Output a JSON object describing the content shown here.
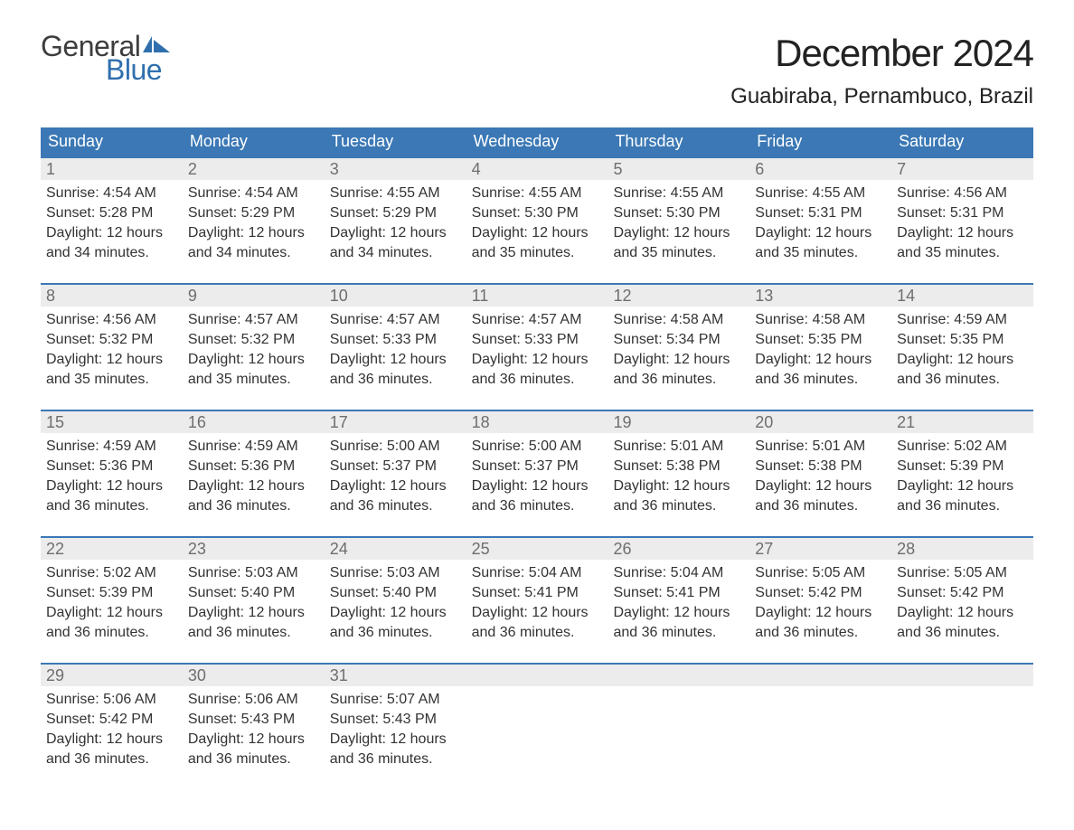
{
  "brand": {
    "general": "General",
    "blue": "Blue"
  },
  "title": "December 2024",
  "location": "Guabiraba, Pernambuco, Brazil",
  "columns": [
    "Sunday",
    "Monday",
    "Tuesday",
    "Wednesday",
    "Thursday",
    "Friday",
    "Saturday"
  ],
  "colors": {
    "header_bg": "#3b78b5",
    "week_border": "#3b78b5",
    "date_bg": "#ececec",
    "date_fg": "#6e6e6e",
    "text": "#333333",
    "background": "#ffffff",
    "logo_blue": "#2f6fae",
    "logo_dark": "#3d3d3d"
  },
  "label_prefixes": {
    "sunrise": "Sunrise: ",
    "sunset": "Sunset: ",
    "daylight": "Daylight: "
  },
  "weeks": [
    [
      {
        "d": "1",
        "sr": "4:54 AM",
        "ss": "5:28 PM",
        "dl": "12 hours and 34 minutes."
      },
      {
        "d": "2",
        "sr": "4:54 AM",
        "ss": "5:29 PM",
        "dl": "12 hours and 34 minutes."
      },
      {
        "d": "3",
        "sr": "4:55 AM",
        "ss": "5:29 PM",
        "dl": "12 hours and 34 minutes."
      },
      {
        "d": "4",
        "sr": "4:55 AM",
        "ss": "5:30 PM",
        "dl": "12 hours and 35 minutes."
      },
      {
        "d": "5",
        "sr": "4:55 AM",
        "ss": "5:30 PM",
        "dl": "12 hours and 35 minutes."
      },
      {
        "d": "6",
        "sr": "4:55 AM",
        "ss": "5:31 PM",
        "dl": "12 hours and 35 minutes."
      },
      {
        "d": "7",
        "sr": "4:56 AM",
        "ss": "5:31 PM",
        "dl": "12 hours and 35 minutes."
      }
    ],
    [
      {
        "d": "8",
        "sr": "4:56 AM",
        "ss": "5:32 PM",
        "dl": "12 hours and 35 minutes."
      },
      {
        "d": "9",
        "sr": "4:57 AM",
        "ss": "5:32 PM",
        "dl": "12 hours and 35 minutes."
      },
      {
        "d": "10",
        "sr": "4:57 AM",
        "ss": "5:33 PM",
        "dl": "12 hours and 36 minutes."
      },
      {
        "d": "11",
        "sr": "4:57 AM",
        "ss": "5:33 PM",
        "dl": "12 hours and 36 minutes."
      },
      {
        "d": "12",
        "sr": "4:58 AM",
        "ss": "5:34 PM",
        "dl": "12 hours and 36 minutes."
      },
      {
        "d": "13",
        "sr": "4:58 AM",
        "ss": "5:35 PM",
        "dl": "12 hours and 36 minutes."
      },
      {
        "d": "14",
        "sr": "4:59 AM",
        "ss": "5:35 PM",
        "dl": "12 hours and 36 minutes."
      }
    ],
    [
      {
        "d": "15",
        "sr": "4:59 AM",
        "ss": "5:36 PM",
        "dl": "12 hours and 36 minutes."
      },
      {
        "d": "16",
        "sr": "4:59 AM",
        "ss": "5:36 PM",
        "dl": "12 hours and 36 minutes."
      },
      {
        "d": "17",
        "sr": "5:00 AM",
        "ss": "5:37 PM",
        "dl": "12 hours and 36 minutes."
      },
      {
        "d": "18",
        "sr": "5:00 AM",
        "ss": "5:37 PM",
        "dl": "12 hours and 36 minutes."
      },
      {
        "d": "19",
        "sr": "5:01 AM",
        "ss": "5:38 PM",
        "dl": "12 hours and 36 minutes."
      },
      {
        "d": "20",
        "sr": "5:01 AM",
        "ss": "5:38 PM",
        "dl": "12 hours and 36 minutes."
      },
      {
        "d": "21",
        "sr": "5:02 AM",
        "ss": "5:39 PM",
        "dl": "12 hours and 36 minutes."
      }
    ],
    [
      {
        "d": "22",
        "sr": "5:02 AM",
        "ss": "5:39 PM",
        "dl": "12 hours and 36 minutes."
      },
      {
        "d": "23",
        "sr": "5:03 AM",
        "ss": "5:40 PM",
        "dl": "12 hours and 36 minutes."
      },
      {
        "d": "24",
        "sr": "5:03 AM",
        "ss": "5:40 PM",
        "dl": "12 hours and 36 minutes."
      },
      {
        "d": "25",
        "sr": "5:04 AM",
        "ss": "5:41 PM",
        "dl": "12 hours and 36 minutes."
      },
      {
        "d": "26",
        "sr": "5:04 AM",
        "ss": "5:41 PM",
        "dl": "12 hours and 36 minutes."
      },
      {
        "d": "27",
        "sr": "5:05 AM",
        "ss": "5:42 PM",
        "dl": "12 hours and 36 minutes."
      },
      {
        "d": "28",
        "sr": "5:05 AM",
        "ss": "5:42 PM",
        "dl": "12 hours and 36 minutes."
      }
    ],
    [
      {
        "d": "29",
        "sr": "5:06 AM",
        "ss": "5:42 PM",
        "dl": "12 hours and 36 minutes."
      },
      {
        "d": "30",
        "sr": "5:06 AM",
        "ss": "5:43 PM",
        "dl": "12 hours and 36 minutes."
      },
      {
        "d": "31",
        "sr": "5:07 AM",
        "ss": "5:43 PM",
        "dl": "12 hours and 36 minutes."
      },
      {
        "empty": true
      },
      {
        "empty": true
      },
      {
        "empty": true
      },
      {
        "empty": true
      }
    ]
  ]
}
